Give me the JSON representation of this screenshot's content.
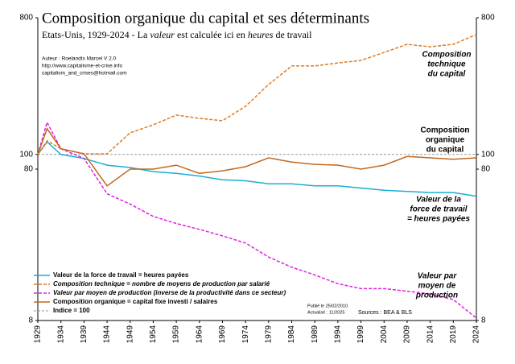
{
  "chart_data": {
    "type": "line",
    "title": "Composition organique du capital et ses déterminants",
    "subtitle": [
      "Etats-Unis, 1929-2024  -  La ",
      "valeur",
      " est calculée ici en ",
      "heures",
      " de travail"
    ],
    "x": [
      1929,
      1931,
      1934,
      1939,
      1944,
      1949,
      1954,
      1959,
      1964,
      1969,
      1974,
      1979,
      1984,
      1989,
      1994,
      1999,
      2004,
      2009,
      2014,
      2019,
      2024
    ],
    "xlim": [
      1929,
      2024
    ],
    "xticks": [
      1929,
      1934,
      1939,
      1944,
      1949,
      1954,
      1959,
      1964,
      1969,
      1974,
      1979,
      1984,
      1989,
      1994,
      1999,
      2004,
      2009,
      2014,
      2019,
      2024
    ],
    "ylim": [
      8,
      800
    ],
    "yticks": [
      8,
      80,
      100,
      800
    ],
    "log_scale": true,
    "y2lim": [
      8,
      800
    ],
    "y2ticks": [
      8,
      80,
      100,
      800
    ],
    "series": [
      {
        "name": "Valeur de la force de travail = heures payées",
        "color": "#1aaed6",
        "dash": false,
        "values": [
          100,
          121,
          100,
          94,
          85,
          82,
          77,
          75,
          72,
          68,
          67,
          64,
          64,
          62,
          62,
          60,
          58,
          57,
          56,
          56,
          53
        ]
      },
      {
        "name": "Composition technique  =  nombre de moyens de production par salarié",
        "color": "#e07b20",
        "dash": true,
        "values": [
          100,
          123,
          109,
          101,
          101,
          139,
          157,
          182,
          173,
          167,
          208,
          290,
          384,
          384,
          402,
          418,
          472,
          534,
          514,
          534,
          619
        ]
      },
      {
        "name": "Valeur par moyen de production (inverse de la productivité dans ce secteur)",
        "color": "#e020e0",
        "dash": true,
        "values": [
          100,
          163,
          109,
          94,
          55,
          47,
          39,
          35,
          32,
          29,
          26,
          21,
          18,
          16,
          14,
          13,
          13,
          12.5,
          12,
          11,
          8.3
        ]
      },
      {
        "name": "Composition organique  =  capital fixe investi / salaires",
        "color": "#c4671e",
        "dash": false,
        "values": [
          100,
          148,
          109,
          101,
          62,
          80,
          80,
          85,
          75,
          78,
          83,
          95,
          89,
          86,
          85,
          80,
          85,
          97,
          95,
          93,
          95
        ]
      }
    ],
    "reference_line": {
      "value": 100,
      "name": "Indice = 100",
      "color": "#999999"
    },
    "annotations": [
      {
        "lines": [
          "Composition",
          "technique",
          "du capital"
        ],
        "color": "#e07b20",
        "italic": true
      },
      {
        "lines": [
          "Composition",
          "organique",
          "du capital"
        ],
        "color": "#c4671e",
        "italic": false
      },
      {
        "lines": [
          "Valeur de la",
          "force de travail",
          "= heures payées"
        ],
        "color": "#1aaed6",
        "italic": true
      },
      {
        "lines": [
          "Valeur par",
          "moyen de",
          "production"
        ],
        "color": "#e020e0",
        "italic": true
      }
    ],
    "author": [
      "Auteur : Roelandts Marcel   V 2.0",
      "http://www.capitalisme-et-crise.info",
      "capitalism_and_crises@hotmail.com"
    ],
    "published": [
      "Publié le 25/02/2010",
      "Actualisé : 11/2025"
    ],
    "sources": "Sources : BEA & BLS"
  }
}
